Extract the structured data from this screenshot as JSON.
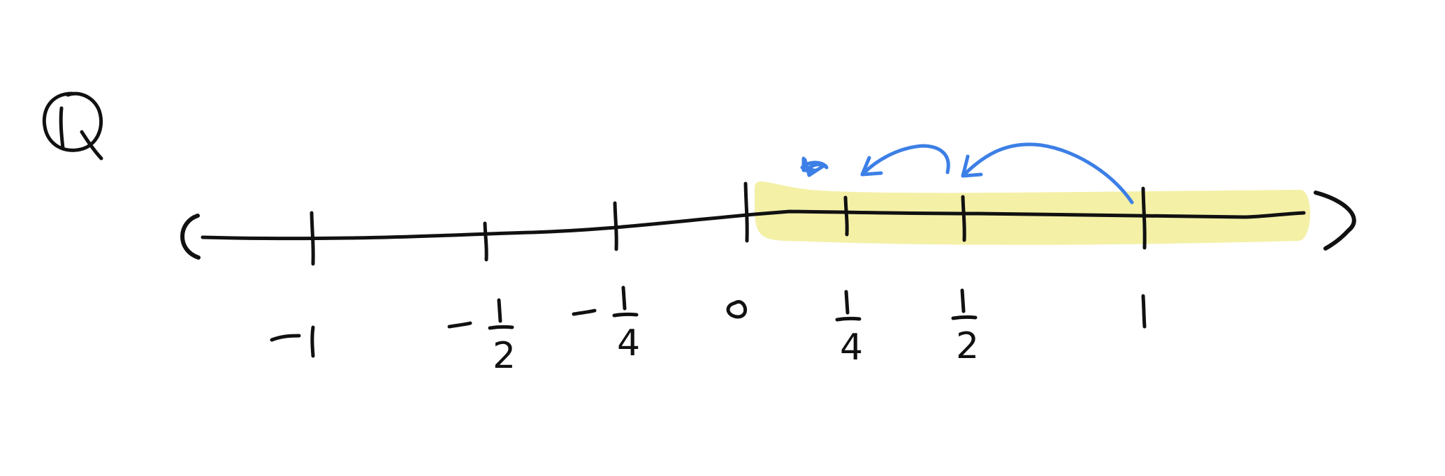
{
  "title_symbol": "Q",
  "number_line": {
    "left_bracket": "(",
    "right_bracket": ")",
    "ticks": [
      {
        "value": -1,
        "label": "-1"
      },
      {
        "value": -0.5,
        "label": "-1/2"
      },
      {
        "value": -0.25,
        "label": "-1/4"
      },
      {
        "value": 0,
        "label": "0"
      },
      {
        "value": 0.25,
        "label": "1/4"
      },
      {
        "value": 0.5,
        "label": "1/2"
      },
      {
        "value": 1,
        "label": "1"
      }
    ],
    "highlight": {
      "from": 0,
      "to_open_end": true,
      "color": "#f4f0a6"
    },
    "arrows": {
      "color": "#3c7fe6",
      "hops": [
        {
          "from": 1,
          "to": 0.5
        },
        {
          "from": 0.5,
          "to": 0.25
        },
        {
          "from": 0.25,
          "to": 0.125
        }
      ]
    }
  },
  "colors": {
    "ink": "#111111",
    "highlight": "#f4f0a6",
    "arrow": "#3c7fe6"
  }
}
